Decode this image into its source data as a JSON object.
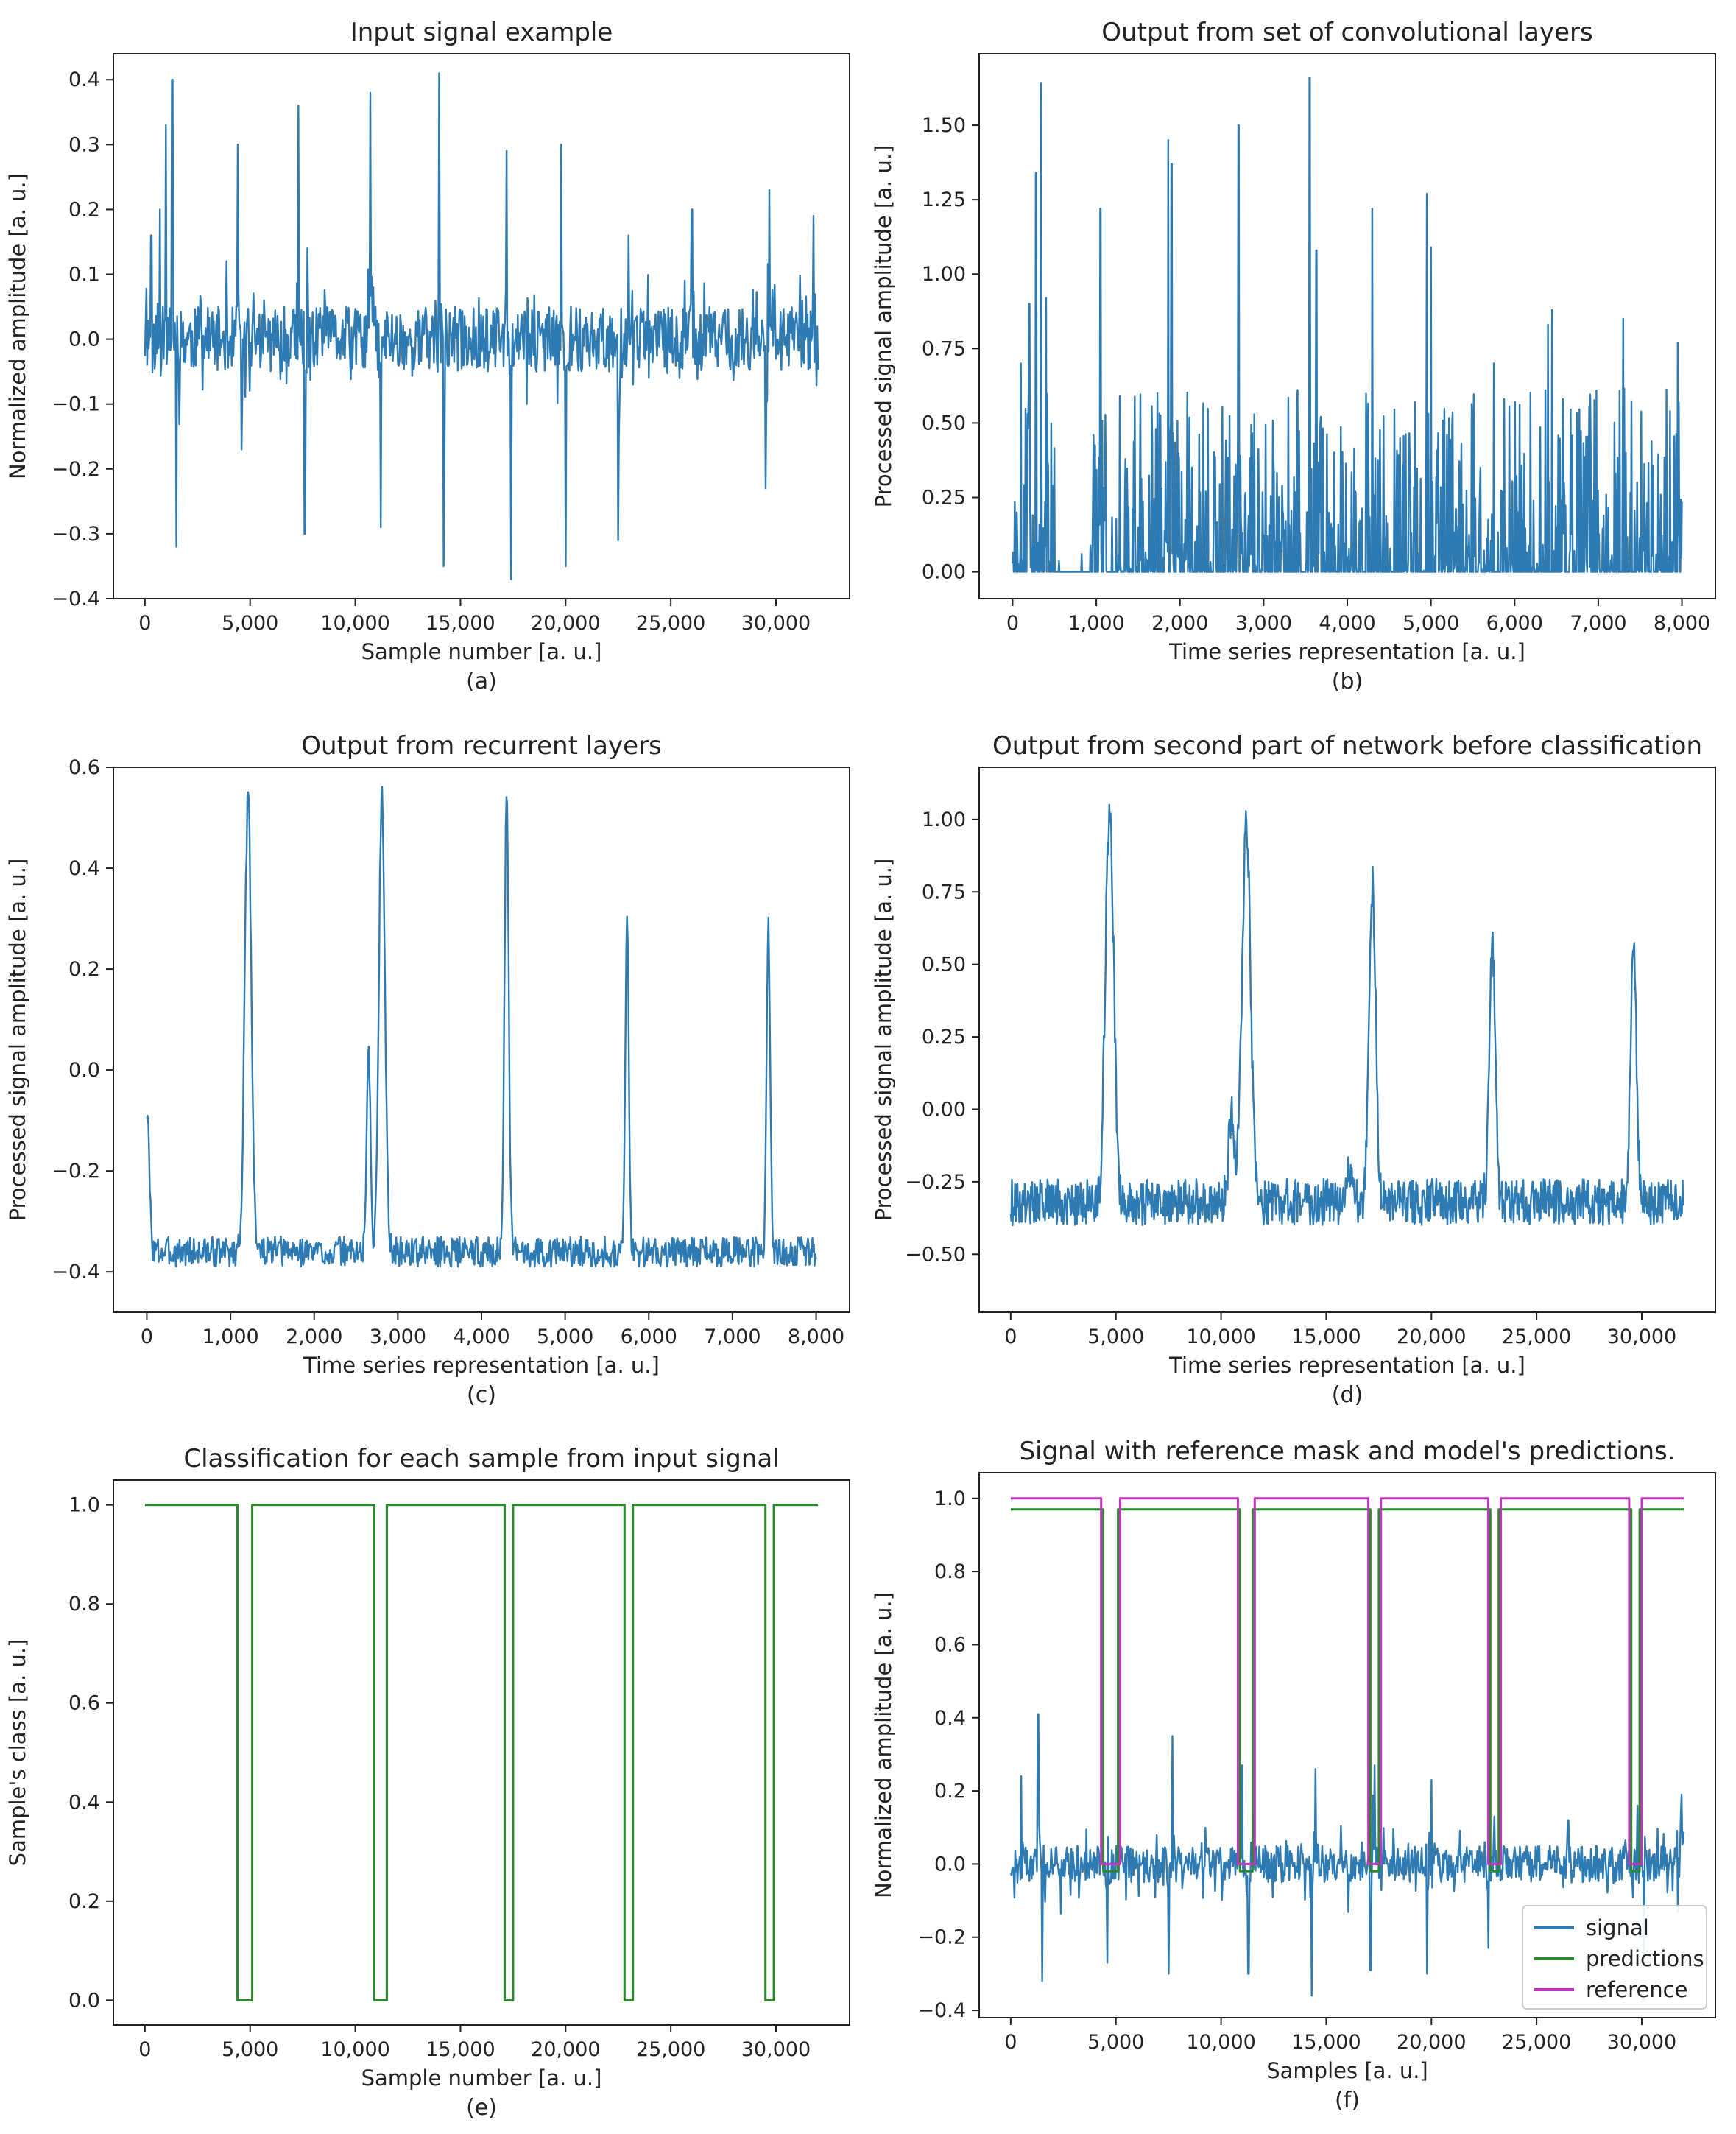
{
  "colors": {
    "signal": "#2e7bb4",
    "predictions": "#2a8a2a",
    "reference": "#c233c2",
    "axis": "#222222"
  },
  "chart_data": [
    {
      "id": "a",
      "type": "line",
      "caption": "(a)",
      "title": "Input signal example",
      "xlabel": "Sample number [a. u.]",
      "ylabel": "Normalized amplitude [a. u.]",
      "xlim": [
        -1500,
        33500
      ],
      "ylim": [
        -0.4,
        0.44
      ],
      "xticks": [
        0,
        5000,
        10000,
        15000,
        20000,
        25000,
        30000
      ],
      "xticklabels": [
        "0",
        "5,000",
        "10,000",
        "15,000",
        "20,000",
        "25,000",
        "30,000"
      ],
      "yticks": [
        -0.4,
        -0.3,
        -0.2,
        -0.1,
        0.0,
        0.1,
        0.2,
        0.3,
        0.4
      ],
      "yticklabels": [
        "−0.4",
        "−0.3",
        "−0.2",
        "−0.1",
        "0.0",
        "0.1",
        "0.2",
        "0.3",
        "0.4"
      ],
      "series": [
        {
          "name": "signal",
          "color": "#2e7bb4",
          "generator": {
            "kind": "noisy",
            "x0": 0,
            "x1": 32000,
            "n": 900,
            "base": 0,
            "noise": 0.05,
            "seed": 11,
            "peaks": [
              [
                300,
                0.16
              ],
              [
                700,
                0.2
              ],
              [
                1000,
                0.33
              ],
              [
                1300,
                0.4
              ],
              [
                1500,
                -0.32
              ],
              [
                4400,
                0.3
              ],
              [
                4600,
                -0.17
              ],
              [
                7300,
                0.36
              ],
              [
                7600,
                -0.3
              ],
              [
                10700,
                0.38
              ],
              [
                11200,
                -0.29
              ],
              [
                14000,
                0.41
              ],
              [
                14200,
                -0.35
              ],
              [
                17200,
                0.29
              ],
              [
                17400,
                -0.37
              ],
              [
                19800,
                0.3
              ],
              [
                20000,
                -0.35
              ],
              [
                22500,
                -0.31
              ],
              [
                23000,
                0.16
              ],
              [
                26000,
                0.2
              ],
              [
                29700,
                0.23
              ],
              [
                29500,
                -0.23
              ],
              [
                31800,
                0.19
              ]
            ]
          }
        }
      ]
    },
    {
      "id": "b",
      "type": "line",
      "caption": "(b)",
      "title": "Output from set of convolutional layers",
      "xlabel": "Time series representation [a. u.]",
      "ylabel": "Processed signal amplitude [a. u.]",
      "xlim": [
        -400,
        8400
      ],
      "ylim": [
        -0.09,
        1.74
      ],
      "xticks": [
        0,
        1000,
        2000,
        3000,
        4000,
        5000,
        6000,
        7000,
        8000
      ],
      "xticklabels": [
        "0",
        "1,000",
        "2,000",
        "3,000",
        "4,000",
        "5,000",
        "6,000",
        "7,000",
        "8,000"
      ],
      "yticks": [
        0.0,
        0.25,
        0.5,
        0.75,
        1.0,
        1.25,
        1.5
      ],
      "yticklabels": [
        "0.00",
        "0.25",
        "0.50",
        "0.75",
        "1.00",
        "1.25",
        "1.50"
      ],
      "series": [
        {
          "name": "signal",
          "color": "#2e7bb4",
          "generator": {
            "kind": "spiky",
            "x0": 0,
            "x1": 8000,
            "n": 1300,
            "base": 0,
            "noise": 0.28,
            "seed": 5,
            "quiet": [
              [
                500,
                950
              ],
              [
                1150,
                1250
              ]
            ],
            "peaks": [
              [
                100,
                0.7
              ],
              [
                200,
                0.9
              ],
              [
                280,
                1.34
              ],
              [
                340,
                1.64
              ],
              [
                400,
                0.92
              ],
              [
                1050,
                1.22
              ],
              [
                1280,
                0.59
              ],
              [
                1860,
                1.45
              ],
              [
                1900,
                1.37
              ],
              [
                2700,
                1.5
              ],
              [
                3550,
                1.66
              ],
              [
                3630,
                1.08
              ],
              [
                4300,
                1.22
              ],
              [
                4950,
                1.27
              ],
              [
                5000,
                1.09
              ],
              [
                5750,
                0.7
              ],
              [
                6400,
                0.83
              ],
              [
                6450,
                0.88
              ],
              [
                7300,
                0.85
              ],
              [
                7950,
                0.77
              ]
            ]
          }
        }
      ]
    },
    {
      "id": "c",
      "type": "line",
      "caption": "(c)",
      "title": "Output from recurrent layers",
      "xlabel": "Time series representation [a. u.]",
      "ylabel": "Processed signal amplitude [a. u.]",
      "xlim": [
        -400,
        8400
      ],
      "ylim": [
        -0.48,
        0.6
      ],
      "xticks": [
        0,
        1000,
        2000,
        3000,
        4000,
        5000,
        6000,
        7000,
        8000
      ],
      "xticklabels": [
        "0",
        "1,000",
        "2,000",
        "3,000",
        "4,000",
        "5,000",
        "6,000",
        "7,000",
        "8,000"
      ],
      "yticks": [
        -0.4,
        -0.2,
        0.0,
        0.2,
        0.4,
        0.6
      ],
      "yticklabels": [
        "−0.4",
        "−0.2",
        "0.0",
        "0.2",
        "0.4",
        "0.6"
      ],
      "series": [
        {
          "name": "signal",
          "color": "#2e7bb4",
          "generator": {
            "kind": "bumps",
            "x0": 0,
            "x1": 8000,
            "n": 900,
            "base": -0.36,
            "noise": 0.03,
            "seed": 3,
            "bumps": [
              [
                0,
                0.28,
                40
              ],
              [
                1210,
                0.9,
                55
              ],
              [
                2650,
                0.42,
                30
              ],
              [
                2810,
                0.92,
                50
              ],
              [
                4300,
                0.9,
                35
              ],
              [
                5740,
                0.64,
                30
              ],
              [
                7430,
                0.65,
                30
              ]
            ]
          }
        }
      ]
    },
    {
      "id": "d",
      "type": "line",
      "caption": "(d)",
      "title": "Output from second part of network before classification",
      "xlabel": "Time series representation [a. u.]",
      "ylabel": "Processed signal amplitude [a. u.]",
      "xlim": [
        -1500,
        33500
      ],
      "ylim": [
        -0.7,
        1.18
      ],
      "xticks": [
        0,
        5000,
        10000,
        15000,
        20000,
        25000,
        30000
      ],
      "xticklabels": [
        "0",
        "5,000",
        "10,000",
        "15,000",
        "20,000",
        "25,000",
        "30,000"
      ],
      "yticks": [
        -0.5,
        -0.25,
        0.0,
        0.25,
        0.5,
        0.75,
        1.0
      ],
      "yticklabels": [
        "−0.50",
        "−0.25",
        "0.00",
        "0.25",
        "0.50",
        "0.75",
        "1.00"
      ],
      "series": [
        {
          "name": "signal",
          "color": "#2e7bb4",
          "generator": {
            "kind": "bumps",
            "x0": 0,
            "x1": 32000,
            "n": 1100,
            "base": -0.32,
            "noise": 0.08,
            "seed": 9,
            "bumps": [
              [
                4700,
                1.35,
                280
              ],
              [
                11200,
                1.32,
                280
              ],
              [
                10500,
                0.3,
                200
              ],
              [
                17200,
                1.08,
                220
              ],
              [
                22900,
                0.88,
                200
              ],
              [
                29600,
                0.9,
                200
              ],
              [
                16100,
                0.12,
                150
              ]
            ]
          }
        }
      ]
    },
    {
      "id": "e",
      "type": "line",
      "caption": "(e)",
      "title": "Classification for each sample from input signal",
      "xlabel": "Sample number [a. u.]",
      "ylabel": "Sample's class [a. u.]",
      "xlim": [
        -1500,
        33500
      ],
      "ylim": [
        -0.05,
        1.05
      ],
      "xticks": [
        0,
        5000,
        10000,
        15000,
        20000,
        25000,
        30000
      ],
      "xticklabels": [
        "0",
        "5,000",
        "10,000",
        "15,000",
        "20,000",
        "25,000",
        "30,000"
      ],
      "yticks": [
        0.0,
        0.2,
        0.4,
        0.6,
        0.8,
        1.0
      ],
      "yticklabels": [
        "0.0",
        "0.2",
        "0.4",
        "0.6",
        "0.8",
        "1.0"
      ],
      "series": [
        {
          "name": "predictions",
          "color": "#2a8a2a",
          "generator": {
            "kind": "step",
            "x0": 0,
            "x1": 32000,
            "high": 1.0,
            "low": 0.0,
            "gaps": [
              [
                4400,
                5100
              ],
              [
                10900,
                11500
              ],
              [
                17100,
                17500
              ],
              [
                22800,
                23200
              ],
              [
                29500,
                29900
              ]
            ]
          }
        }
      ]
    },
    {
      "id": "f",
      "type": "line",
      "caption": "(f)",
      "title": "Signal with reference mask and model's predictions.",
      "xlabel": "Samples [a. u.]",
      "ylabel": "Normalized amplitude [a. u.]",
      "xlim": [
        -1500,
        33500
      ],
      "ylim": [
        -0.42,
        1.07
      ],
      "xticks": [
        0,
        5000,
        10000,
        15000,
        20000,
        25000,
        30000
      ],
      "xticklabels": [
        "0",
        "5,000",
        "10,000",
        "15,000",
        "20,000",
        "25,000",
        "30,000"
      ],
      "yticks": [
        -0.4,
        -0.2,
        0.0,
        0.2,
        0.4,
        0.6,
        0.8,
        1.0
      ],
      "yticklabels": [
        "−0.4",
        "−0.2",
        "0.0",
        "0.2",
        "0.4",
        "0.6",
        "0.8",
        "1.0"
      ],
      "legend": {
        "position": "bottom-right",
        "entries": [
          "signal",
          "predictions",
          "reference"
        ]
      },
      "series": [
        {
          "name": "signal",
          "color": "#2e7bb4",
          "generator": {
            "kind": "noisy",
            "x0": 0,
            "x1": 32000,
            "n": 900,
            "base": 0,
            "noise": 0.05,
            "seed": 21,
            "peaks": [
              [
                500,
                0.24
              ],
              [
                1300,
                0.41
              ],
              [
                1500,
                -0.32
              ],
              [
                4600,
                -0.27
              ],
              [
                7700,
                0.35
              ],
              [
                7500,
                -0.3
              ],
              [
                11000,
                0.27
              ],
              [
                11300,
                -0.3
              ],
              [
                14500,
                0.26
              ],
              [
                14300,
                -0.36
              ],
              [
                17100,
                -0.29
              ],
              [
                17300,
                0.27
              ],
              [
                20000,
                0.23
              ],
              [
                19800,
                -0.3
              ],
              [
                23000,
                0.13
              ],
              [
                22700,
                -0.23
              ],
              [
                26500,
                0.12
              ],
              [
                29800,
                0.16
              ],
              [
                30100,
                -0.26
              ],
              [
                31900,
                0.19
              ]
            ]
          }
        },
        {
          "name": "predictions",
          "color": "#2a8a2a",
          "generator": {
            "kind": "step",
            "x0": 0,
            "x1": 32000,
            "high": 0.97,
            "low": -0.02,
            "gaps": [
              [
                4400,
                5100
              ],
              [
                10900,
                11500
              ],
              [
                17100,
                17500
              ],
              [
                22800,
                23200
              ],
              [
                29500,
                29900
              ]
            ]
          }
        },
        {
          "name": "reference",
          "color": "#c233c2",
          "generator": {
            "kind": "step",
            "x0": 0,
            "x1": 32000,
            "high": 1.0,
            "low": 0.0,
            "gaps": [
              [
                4300,
                5200
              ],
              [
                10800,
                11600
              ],
              [
                17000,
                17600
              ],
              [
                22700,
                23300
              ],
              [
                29400,
                30000
              ]
            ]
          }
        }
      ]
    }
  ]
}
